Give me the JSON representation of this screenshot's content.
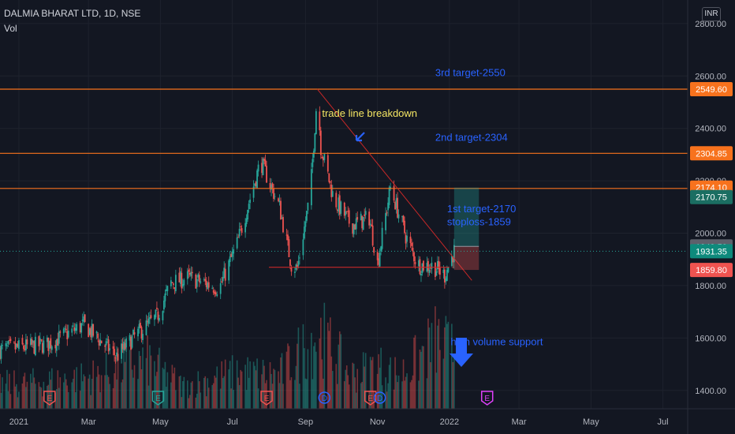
{
  "legend": {
    "symbol": "DALMIA BHARAT LTD, 1D, NSE",
    "volume": "Vol"
  },
  "currency": "INR",
  "colors": {
    "background": "#131722",
    "grid": "#1e222d",
    "up": "#26a69a",
    "down": "#ef5350",
    "level_line": "#f7721d",
    "trend_line": "#c62828",
    "annotation": "#2962ff",
    "annotation_yellow": "#f5e663",
    "axis_text": "#b2b5be",
    "price_label_last": "#0e8a7c"
  },
  "chart_data": {
    "type": "candlestick",
    "title": "DALMIA BHARAT LTD, 1D, NSE",
    "xlabel": "",
    "ylabel": "",
    "ylim": [
      1330,
      2890
    ],
    "y_ticks": [
      1400,
      1600,
      1800,
      2000,
      2200,
      2400,
      2600,
      2800
    ],
    "y_tick_labels": [
      "1400.00",
      "1600.00",
      "1800.00",
      "2000.00",
      "2200.00",
      "2400.00",
      "2600.00",
      "2800.00"
    ],
    "x_range": [
      "2020-12-16",
      "2022-07-22"
    ],
    "x_ticks": [
      {
        "date": "2021-01-01",
        "label": "2021"
      },
      {
        "date": "2021-03-01",
        "label": "Mar"
      },
      {
        "date": "2021-05-01",
        "label": "May"
      },
      {
        "date": "2021-07-01",
        "label": "Jul"
      },
      {
        "date": "2021-09-01",
        "label": "Sep"
      },
      {
        "date": "2021-11-01",
        "label": "Nov"
      },
      {
        "date": "2022-01-01",
        "label": "2022"
      },
      {
        "date": "2022-03-01",
        "label": "Mar"
      },
      {
        "date": "2022-05-01",
        "label": "May"
      },
      {
        "date": "2022-07-01",
        "label": "Jul"
      }
    ],
    "series": [
      {
        "x": [
          "2020-12-16",
          "2021-01-25",
          "2021-02-25",
          "2021-03-25",
          "2021-04-10",
          "2021-04-28",
          "2021-05-10",
          "2021-05-25",
          "2021-06-20",
          "2021-07-05",
          "2021-07-25",
          "2021-08-10",
          "2021-08-20",
          "2021-08-25",
          "2021-09-05",
          "2021-09-11",
          "2021-09-14",
          "2021-09-25",
          "2021-10-10",
          "2021-10-25",
          "2021-11-01",
          "2021-11-12",
          "2021-11-25",
          "2021-12-05",
          "2021-12-18",
          "2021-12-28",
          "2022-01-05"
        ],
        "close": [
          1555,
          1575,
          1650,
          1530,
          1610,
          1680,
          1810,
          1830,
          1790,
          1960,
          2275,
          2100,
          1880,
          1865,
          2150,
          2540,
          2330,
          2130,
          2030,
          2060,
          1885,
          2175,
          1990,
          1880,
          1875,
          1840,
          1931
        ]
      }
    ],
    "volume_ylim": [
      0,
      110
    ],
    "volume_samples": [
      {
        "x": "2021-01-01",
        "value": 22
      },
      {
        "x": "2021-03-01",
        "value": 28
      },
      {
        "x": "2021-04-20",
        "value": 42
      },
      {
        "x": "2021-05-20",
        "value": 20
      },
      {
        "x": "2021-07-05",
        "value": 32
      },
      {
        "x": "2021-08-10",
        "value": 30
      },
      {
        "x": "2021-09-12",
        "value": 68
      },
      {
        "x": "2021-10-10",
        "value": 30
      },
      {
        "x": "2021-11-01",
        "value": 38
      },
      {
        "x": "2021-11-20",
        "value": 30
      },
      {
        "x": "2021-12-01",
        "value": 40
      },
      {
        "x": "2021-12-20",
        "value": 60
      },
      {
        "x": "2022-01-02",
        "value": 52
      }
    ],
    "events": [
      {
        "date": "2021-01-27",
        "label": "E",
        "color": "#ef5350"
      },
      {
        "date": "2021-04-29",
        "label": "E",
        "color": "#26a69a"
      },
      {
        "date": "2021-07-30",
        "label": "E",
        "color": "#ef5350"
      },
      {
        "date": "2021-09-17",
        "label": "D",
        "color": "#2962ff"
      },
      {
        "date": "2021-10-26",
        "label": "E",
        "color": "#ef5350"
      },
      {
        "date": "2021-11-03",
        "label": "D",
        "color": "#2962ff"
      },
      {
        "date": "2022-02-02",
        "label": "E",
        "color": "#e040fb"
      }
    ],
    "horizontal_levels": [
      2549.6,
      2304.85,
      2170.75
    ],
    "support_line": {
      "x": [
        "2021-08-01",
        "2022-01-01"
      ],
      "y": 1870
    },
    "trend_line": {
      "x": [
        "2021-09-11",
        "2022-01-20"
      ],
      "y": [
        2550,
        1820
      ]
    },
    "position": {
      "x": [
        "2022-01-05",
        "2022-01-26"
      ],
      "entry": 1949.5,
      "target": 2174.1,
      "stop": 1859.8
    },
    "price_labels": [
      {
        "value": 2549.6,
        "label": "2549.60",
        "color": "#f7721d"
      },
      {
        "value": 2304.85,
        "label": "2304.85",
        "color": "#f7721d"
      },
      {
        "value": 2174.1,
        "label": "2174.10",
        "color": "#f7721d"
      },
      {
        "value": 2138,
        "label": "2170.75",
        "color": "#1b6e62"
      },
      {
        "value": 1949.5,
        "label": "1949.50",
        "color": "#5d606b"
      },
      {
        "value": 1931.35,
        "label": "1931.35",
        "color": "#0e8a7c"
      },
      {
        "value": 1859.8,
        "label": "1859.80",
        "color": "#ef5350"
      }
    ],
    "annotations": [
      {
        "text": "3rd target-2550",
        "x": "2021-12-20",
        "y": 2600,
        "color": "#2962ff"
      },
      {
        "text": "2nd target-2304",
        "x": "2021-12-20",
        "y": 2352,
        "color": "#2962ff"
      },
      {
        "text": "trade line breakdown",
        "x": "2021-09-15",
        "y": 2444,
        "color": "#f5e663"
      },
      {
        "text": "1st target-2170",
        "x": "2021-12-30",
        "y": 2080,
        "color": "#2962ff"
      },
      {
        "text": "stoploss-1859",
        "x": "2021-12-30",
        "y": 2030,
        "color": "#2962ff"
      },
      {
        "text": "high volume support",
        "x": "2022-01-02",
        "y": 1573,
        "color": "#2962ff"
      }
    ]
  }
}
